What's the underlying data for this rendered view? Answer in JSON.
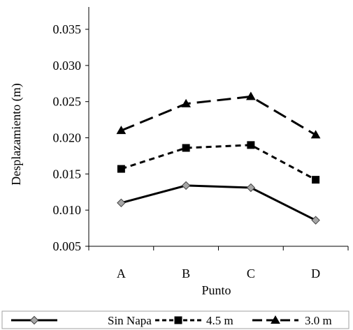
{
  "chart_data": {
    "type": "line",
    "title": "",
    "xlabel": "Punto",
    "ylabel": "Desplazamiento (m)",
    "categories": [
      "A",
      "B",
      "C",
      "D"
    ],
    "ylim": [
      0.005,
      0.035
    ],
    "yticks": [
      "0.005",
      "0.010",
      "0.015",
      "0.020",
      "0.025",
      "0.030",
      "0.035"
    ],
    "grid": false,
    "legend_position": "bottom",
    "series": [
      {
        "name": "Sin Napa",
        "values": [
          0.011,
          0.0134,
          0.0131,
          0.0086
        ],
        "marker": "diamond",
        "dash": "solid",
        "color": "#000000",
        "marker_fill": "#a6a6a6"
      },
      {
        "name": "4.5 m",
        "values": [
          0.0157,
          0.0186,
          0.019,
          0.0142
        ],
        "marker": "square",
        "dash": "short-dash",
        "color": "#000000",
        "marker_fill": "#000000"
      },
      {
        "name": "3.0 m",
        "values": [
          0.021,
          0.0247,
          0.0257,
          0.0204
        ],
        "marker": "triangle",
        "dash": "long-dash",
        "color": "#000000",
        "marker_fill": "#000000"
      }
    ]
  }
}
